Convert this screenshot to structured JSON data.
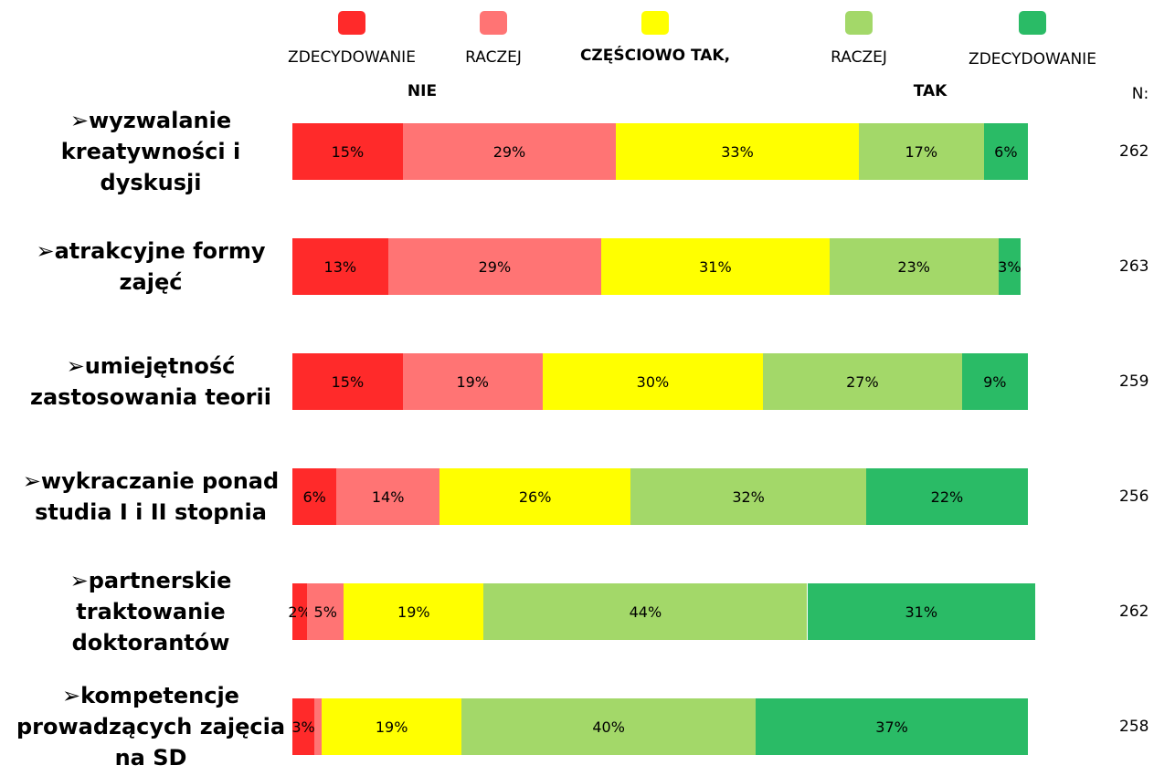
{
  "chart_data": {
    "type": "stacked-bar",
    "categories": [
      "wyzwalanie kreatywności i dyskusji",
      "atrakcyjne formy zajęć",
      "umiejętność zastosowania teorii",
      "wykraczanie ponad studia I i II stopnia",
      "partnerskie traktowanie doktorantów",
      "kompetencje prowadzących zajęcia na SD"
    ],
    "series": [
      {
        "name": "ZDECYDOWANIE",
        "color": "#ff2a2a",
        "values": [
          15,
          13,
          15,
          6,
          2,
          3
        ],
        "value_labels": [
          "15%",
          "13%",
          "15%",
          "6%",
          "2%",
          "3%"
        ]
      },
      {
        "name": "RACZEJ",
        "color": "#ff7474",
        "values": [
          29,
          29,
          19,
          14,
          5,
          1
        ],
        "value_labels": [
          "29%",
          "29%",
          "19%",
          "14%",
          "5%",
          null
        ]
      },
      {
        "name": "CZĘŚCIOWO TAK,",
        "color": "#ffff00",
        "values": [
          33,
          31,
          30,
          26,
          19,
          19
        ],
        "value_labels": [
          "33%",
          "31%",
          "30%",
          "26%",
          "19%",
          "19%"
        ]
      },
      {
        "name": "RACZEJ",
        "color": "#a3d869",
        "values": [
          17,
          23,
          27,
          32,
          44,
          40
        ],
        "value_labels": [
          "17%",
          "23%",
          "27%",
          "32%",
          "44%",
          "40%"
        ]
      },
      {
        "name": "ZDECYDOWANIE",
        "color": "#2abb66",
        "values": [
          6,
          3,
          9,
          22,
          31,
          37
        ],
        "value_labels": [
          "6%",
          "3%",
          "9%",
          "22%",
          "31%",
          "37%"
        ]
      }
    ],
    "legend_notes": [
      "NIE",
      "TAK"
    ],
    "n_header": "N:",
    "n_values": [
      262,
      263,
      259,
      256,
      262,
      258
    ]
  }
}
